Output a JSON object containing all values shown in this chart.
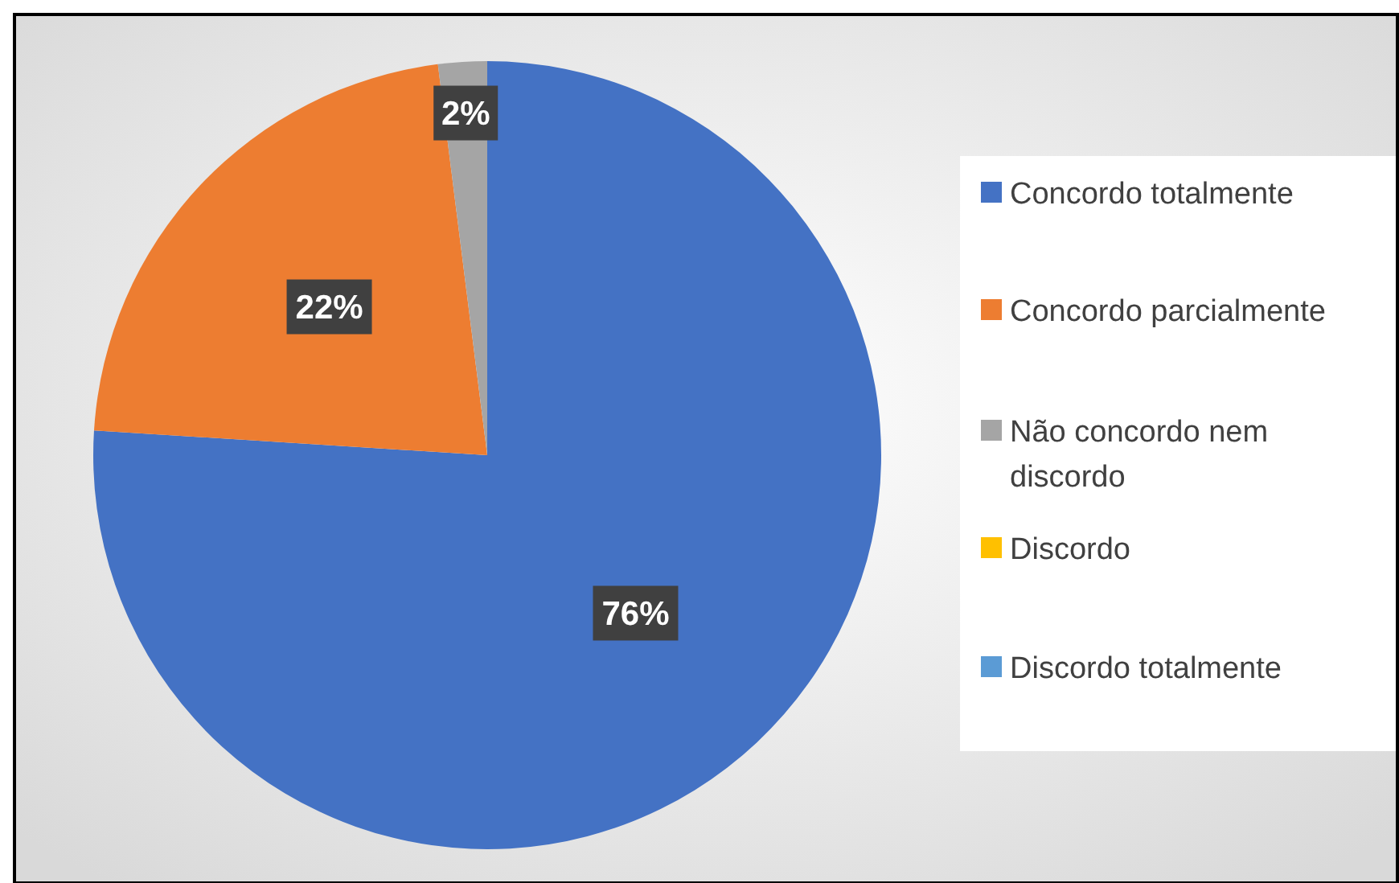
{
  "chart_data": {
    "type": "pie",
    "categories": [
      "Concordo totalmente",
      "Concordo parcialmente",
      "Não concordo nem discordo",
      "Discordo",
      "Discordo totalmente"
    ],
    "values": [
      76,
      22,
      2,
      0,
      0
    ],
    "colors": [
      "#4472c4",
      "#ed7d31",
      "#a5a5a5",
      "#ffc000",
      "#5b9bd5"
    ],
    "value_labels": [
      "76%",
      "22%",
      "2%",
      null,
      null
    ],
    "legend": "right"
  }
}
